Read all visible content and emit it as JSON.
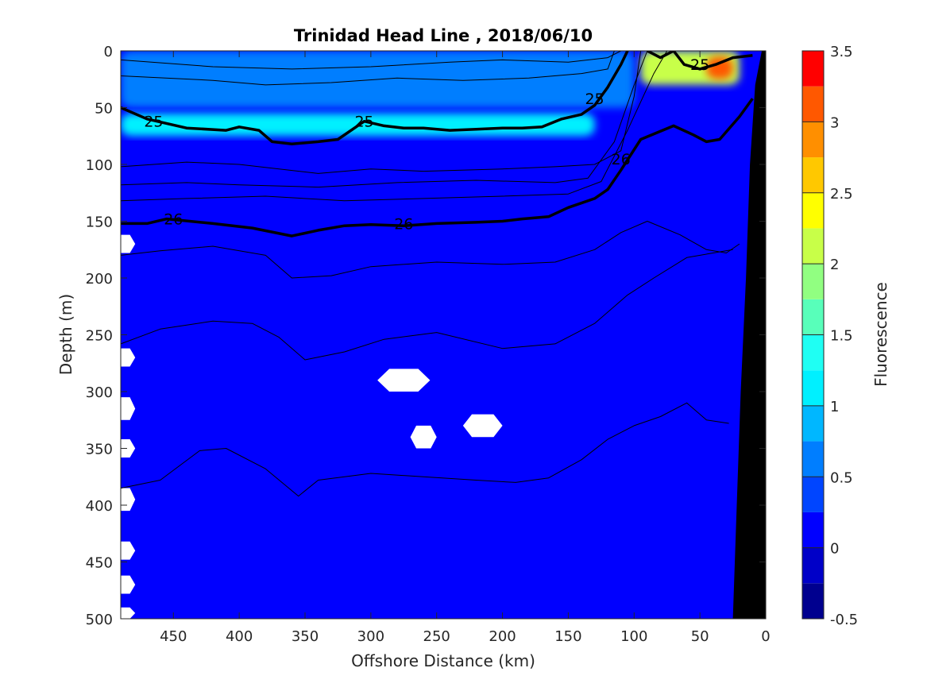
{
  "chart_data": {
    "type": "heatmap",
    "subtype": "filled-contour-section",
    "title": "Trinidad Head Line , 2018/06/10",
    "xlabel": "Offshore Distance (km)",
    "ylabel": "Depth (m)",
    "xlim": [
      490,
      0
    ],
    "ylim": [
      0,
      500
    ],
    "x_reversed": true,
    "y_reversed": true,
    "xticks": [
      450,
      400,
      350,
      300,
      250,
      200,
      150,
      100,
      50,
      0
    ],
    "yticks": [
      0,
      50,
      100,
      150,
      200,
      250,
      300,
      350,
      400,
      450,
      500
    ],
    "colorbar": {
      "label": "Fluorescence",
      "range": [
        -0.5,
        3.5
      ],
      "ticks": [
        -0.5,
        0,
        0.5,
        1,
        1.5,
        2,
        2.5,
        3,
        3.5
      ],
      "levels": [
        -0.5,
        -0.25,
        0,
        0.25,
        0.5,
        0.75,
        1,
        1.25,
        1.5,
        1.75,
        2,
        2.25,
        2.5,
        2.75,
        3,
        3.25,
        3.5
      ],
      "colors": [
        "#00008f",
        "#0000c8",
        "#0000ff",
        "#0045ff",
        "#007eff",
        "#00b7ff",
        "#00f0ff",
        "#1ffff3",
        "#58ffba",
        "#91ff81",
        "#c8ff48",
        "#ffff00",
        "#ffc800",
        "#ff8f00",
        "#ff5800",
        "#ff0000",
        "#ba0000"
      ]
    },
    "background_fluorescence": 0.1,
    "fluorescence_features": [
      {
        "desc": "near-surface maximum band",
        "x": [
          490,
          130
        ],
        "depth": [
          55,
          75
        ],
        "value": 1.0
      },
      {
        "desc": "surface layer",
        "x": [
          490,
          100
        ],
        "depth": [
          0,
          50
        ],
        "value": 0.6
      },
      {
        "desc": "coastal surface bloom",
        "x": [
          95,
          20
        ],
        "depth": [
          0,
          30
        ],
        "value": 2.2
      },
      {
        "desc": "coastal bloom peak",
        "x": [
          45,
          25
        ],
        "depth": [
          5,
          25
        ],
        "value": 3.0
      }
    ],
    "isopycnal_labels": [
      {
        "text": "25",
        "x": 465,
        "depth": 62
      },
      {
        "text": "25",
        "x": 305,
        "depth": 62
      },
      {
        "text": "25",
        "x": 130,
        "depth": 42
      },
      {
        "text": "25",
        "x": 50,
        "depth": 12
      },
      {
        "text": "26",
        "x": 450,
        "depth": 148
      },
      {
        "text": "26",
        "x": 275,
        "depth": 152
      },
      {
        "text": "26",
        "x": 110,
        "depth": 95
      }
    ],
    "isopycnals": [
      {
        "name": "25",
        "bold": true,
        "points": [
          [
            490,
            50
          ],
          [
            470,
            60
          ],
          [
            440,
            68
          ],
          [
            410,
            70
          ],
          [
            400,
            67
          ],
          [
            385,
            70
          ],
          [
            375,
            80
          ],
          [
            360,
            82
          ],
          [
            340,
            80
          ],
          [
            325,
            78
          ],
          [
            305,
            62
          ],
          [
            290,
            66
          ],
          [
            275,
            68
          ],
          [
            260,
            68
          ],
          [
            240,
            70
          ],
          [
            220,
            69
          ],
          [
            200,
            68
          ],
          [
            185,
            68
          ],
          [
            170,
            67
          ],
          [
            155,
            60
          ],
          [
            140,
            56
          ],
          [
            130,
            48
          ],
          [
            120,
            32
          ],
          [
            110,
            12
          ],
          [
            105,
            0
          ]
        ]
      },
      {
        "name": "25 (coastal)",
        "bold": true,
        "points": [
          [
            90,
            0
          ],
          [
            80,
            6
          ],
          [
            70,
            0
          ],
          [
            62,
            12
          ],
          [
            50,
            16
          ],
          [
            38,
            12
          ],
          [
            25,
            6
          ],
          [
            10,
            4
          ]
        ]
      },
      {
        "name": "26",
        "bold": true,
        "points": [
          [
            490,
            152
          ],
          [
            470,
            152
          ],
          [
            455,
            148
          ],
          [
            420,
            152
          ],
          [
            390,
            156
          ],
          [
            360,
            163
          ],
          [
            340,
            158
          ],
          [
            320,
            154
          ],
          [
            300,
            153
          ],
          [
            275,
            154
          ],
          [
            250,
            152
          ],
          [
            220,
            151
          ],
          [
            200,
            150
          ],
          [
            185,
            148
          ],
          [
            165,
            146
          ],
          [
            150,
            138
          ],
          [
            130,
            130
          ],
          [
            120,
            122
          ],
          [
            110,
            105
          ],
          [
            95,
            78
          ],
          [
            70,
            66
          ],
          [
            55,
            74
          ],
          [
            45,
            80
          ],
          [
            35,
            78
          ],
          [
            20,
            58
          ],
          [
            10,
            42
          ]
        ]
      },
      {
        "name": "thin-a",
        "bold": false,
        "points": [
          [
            490,
            8
          ],
          [
            420,
            14
          ],
          [
            360,
            16
          ],
          [
            300,
            14
          ],
          [
            240,
            10
          ],
          [
            200,
            8
          ],
          [
            150,
            10
          ],
          [
            120,
            6
          ],
          [
            110,
            0
          ]
        ]
      },
      {
        "name": "thin-b",
        "bold": false,
        "points": [
          [
            490,
            22
          ],
          [
            420,
            26
          ],
          [
            380,
            30
          ],
          [
            330,
            28
          ],
          [
            280,
            24
          ],
          [
            230,
            26
          ],
          [
            180,
            24
          ],
          [
            140,
            20
          ],
          [
            120,
            16
          ],
          [
            115,
            0
          ]
        ]
      },
      {
        "name": "thin-c",
        "bold": false,
        "points": [
          [
            490,
            102
          ],
          [
            440,
            98
          ],
          [
            400,
            100
          ],
          [
            340,
            108
          ],
          [
            300,
            104
          ],
          [
            260,
            106
          ],
          [
            200,
            104
          ],
          [
            160,
            102
          ],
          [
            130,
            100
          ],
          [
            110,
            88
          ],
          [
            100,
            40
          ],
          [
            95,
            0
          ]
        ]
      },
      {
        "name": "thin-d",
        "bold": false,
        "points": [
          [
            490,
            118
          ],
          [
            440,
            116
          ],
          [
            400,
            118
          ],
          [
            340,
            120
          ],
          [
            280,
            116
          ],
          [
            220,
            114
          ],
          [
            160,
            116
          ],
          [
            135,
            112
          ],
          [
            115,
            80
          ],
          [
            100,
            30
          ],
          [
            90,
            0
          ]
        ]
      },
      {
        "name": "thin-e",
        "bold": false,
        "points": [
          [
            490,
            132
          ],
          [
            440,
            130
          ],
          [
            380,
            128
          ],
          [
            320,
            132
          ],
          [
            260,
            130
          ],
          [
            200,
            128
          ],
          [
            150,
            126
          ],
          [
            125,
            115
          ],
          [
            105,
            70
          ],
          [
            85,
            20
          ],
          [
            75,
            0
          ]
        ]
      },
      {
        "name": "thin-f",
        "bold": false,
        "points": [
          [
            490,
            180
          ],
          [
            460,
            176
          ],
          [
            420,
            172
          ],
          [
            380,
            180
          ],
          [
            360,
            200
          ],
          [
            330,
            198
          ],
          [
            300,
            190
          ],
          [
            250,
            186
          ],
          [
            200,
            188
          ],
          [
            160,
            186
          ],
          [
            130,
            175
          ],
          [
            110,
            160
          ],
          [
            90,
            150
          ],
          [
            65,
            162
          ],
          [
            45,
            175
          ],
          [
            30,
            178
          ],
          [
            20,
            170
          ]
        ]
      },
      {
        "name": "thin-g",
        "bold": false,
        "points": [
          [
            490,
            258
          ],
          [
            460,
            245
          ],
          [
            420,
            238
          ],
          [
            390,
            240
          ],
          [
            370,
            252
          ],
          [
            350,
            272
          ],
          [
            320,
            265
          ],
          [
            290,
            254
          ],
          [
            250,
            248
          ],
          [
            200,
            262
          ],
          [
            160,
            258
          ],
          [
            130,
            240
          ],
          [
            105,
            215
          ],
          [
            85,
            200
          ],
          [
            60,
            182
          ],
          [
            40,
            178
          ],
          [
            25,
            175
          ]
        ]
      },
      {
        "name": "thin-h",
        "bold": false,
        "points": [
          [
            490,
            385
          ],
          [
            460,
            378
          ],
          [
            430,
            352
          ],
          [
            410,
            350
          ],
          [
            380,
            368
          ],
          [
            355,
            392
          ],
          [
            340,
            378
          ],
          [
            300,
            372
          ],
          [
            260,
            375
          ],
          [
            220,
            378
          ],
          [
            190,
            380
          ],
          [
            165,
            376
          ],
          [
            140,
            360
          ],
          [
            120,
            342
          ],
          [
            100,
            330
          ],
          [
            80,
            322
          ],
          [
            60,
            310
          ],
          [
            45,
            325
          ],
          [
            28,
            328
          ]
        ]
      }
    ],
    "missing_data_patches": [
      {
        "x": 275,
        "depth": 290,
        "dx": 20,
        "dh": 10
      },
      {
        "x": 215,
        "depth": 330,
        "dx": 15,
        "dh": 10
      },
      {
        "x": 260,
        "depth": 340,
        "dx": 10,
        "dh": 10
      },
      {
        "x": 488,
        "depth": 170,
        "dx": 9,
        "dh": 8
      },
      {
        "x": 488,
        "depth": 270,
        "dx": 9,
        "dh": 8
      },
      {
        "x": 488,
        "depth": 315,
        "dx": 9,
        "dh": 10
      },
      {
        "x": 488,
        "depth": 350,
        "dx": 9,
        "dh": 8
      },
      {
        "x": 488,
        "depth": 395,
        "dx": 9,
        "dh": 10
      },
      {
        "x": 488,
        "depth": 440,
        "dx": 9,
        "dh": 8
      },
      {
        "x": 488,
        "depth": 470,
        "dx": 9,
        "dh": 8
      },
      {
        "x": 488,
        "depth": 495,
        "dx": 9,
        "dh": 5
      }
    ],
    "bathymetry": [
      [
        3,
        0
      ],
      [
        8,
        30
      ],
      [
        12,
        100
      ],
      [
        15,
        200
      ],
      [
        19,
        300
      ],
      [
        22,
        400
      ],
      [
        25,
        500
      ]
    ]
  }
}
